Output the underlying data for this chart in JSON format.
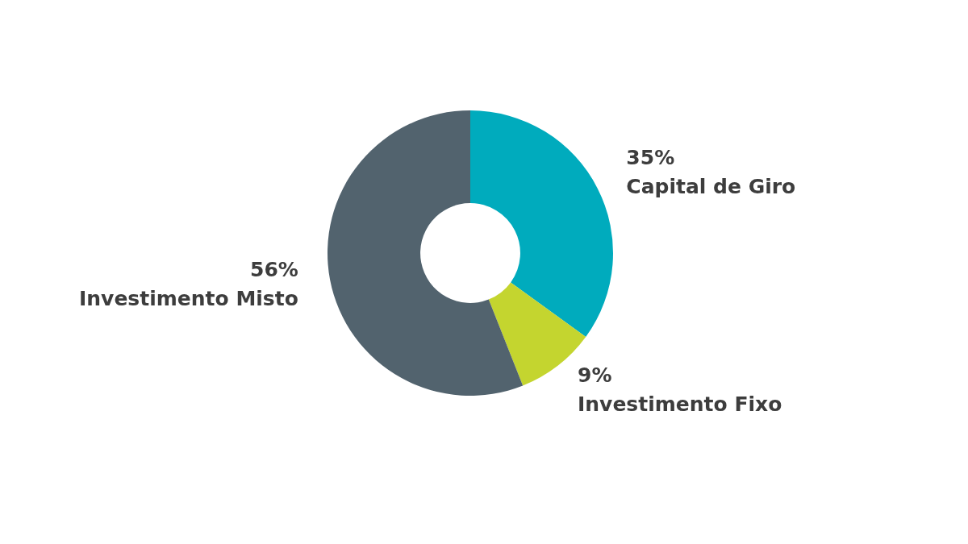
{
  "chart_data": {
    "type": "donut",
    "categories": [
      "Capital de Giro",
      "Investimento Fixo",
      "Investimento Misto"
    ],
    "values": [
      35,
      9,
      56
    ],
    "value_labels": [
      "35%",
      "9%",
      "56%"
    ],
    "colors": [
      "#00abbd",
      "#c4d52f",
      "#52636e"
    ],
    "legend": false
  }
}
